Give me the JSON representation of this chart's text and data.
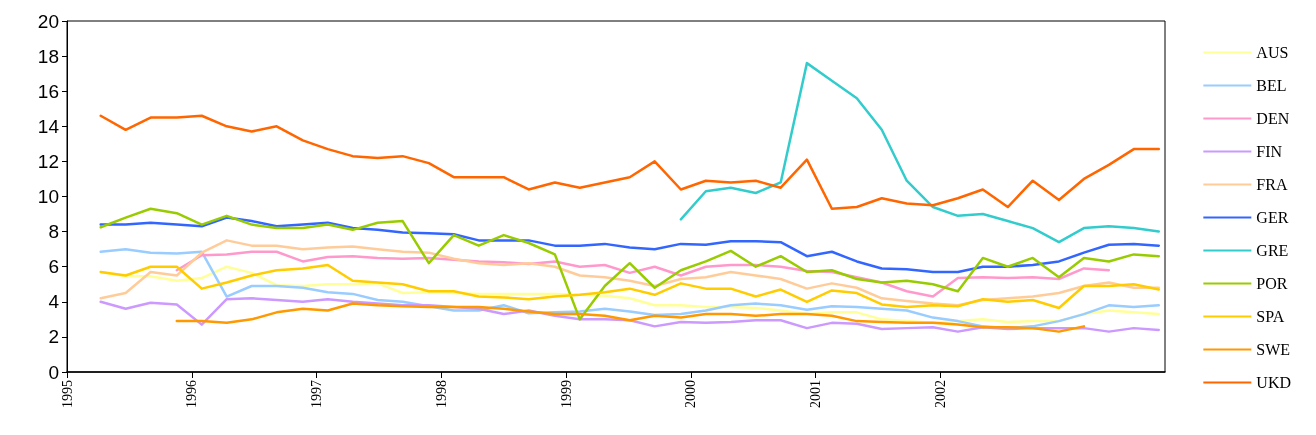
{
  "chart_data": {
    "type": "line",
    "x": [
      1995.27,
      1995.47,
      1995.67,
      1995.88,
      1996.08,
      1996.28,
      1996.48,
      1996.68,
      1996.89,
      1997.09,
      1997.29,
      1997.49,
      1997.69,
      1997.9,
      1998.1,
      1998.3,
      1998.5,
      1998.7,
      1998.91,
      1999.11,
      1999.31,
      1999.51,
      1999.71,
      1999.92,
      2000.12,
      2000.32,
      2000.52,
      2000.72,
      2000.93,
      2001.13,
      2001.33,
      2001.53,
      2001.73,
      2001.94,
      2002.14,
      2002.34,
      2002.54,
      2002.74,
      2002.95,
      2003.15,
      2003.35,
      2003.55,
      2003.75
    ],
    "xlim": [
      1995,
      2003.8
    ],
    "xticks": [
      1995,
      1996,
      1997,
      1998,
      1999,
      2000,
      2001,
      2002
    ],
    "ylim": [
      0,
      20
    ],
    "yticks": [
      0,
      2,
      4,
      6,
      8,
      10,
      12,
      14,
      16,
      18,
      20
    ],
    "grid": false,
    "legend": "right",
    "marker": "none",
    "line_style": "solid",
    "series": [
      {
        "name": "AUS",
        "color": "#ffff99",
        "values": [
          5.7,
          5.45,
          5.45,
          5.2,
          5.35,
          6.0,
          5.65,
          4.95,
          4.9,
          5.0,
          5.0,
          5.05,
          4.5,
          4.55,
          4.5,
          4.45,
          4.45,
          4.45,
          4.45,
          4.4,
          4.35,
          4.2,
          3.8,
          3.8,
          3.7,
          3.7,
          3.65,
          3.5,
          3.3,
          3.4,
          3.4,
          3.0,
          2.9,
          2.8,
          2.9,
          3.0,
          2.85,
          2.9,
          2.9,
          3.3,
          3.5,
          3.4,
          3.3
        ]
      },
      {
        "name": "BEL",
        "color": "#99ccff",
        "values": [
          6.85,
          7.0,
          6.8,
          6.75,
          6.85,
          4.3,
          4.9,
          4.9,
          4.8,
          4.55,
          4.45,
          4.1,
          4.0,
          3.75,
          3.5,
          3.5,
          3.8,
          3.35,
          3.4,
          3.45,
          3.6,
          3.45,
          3.25,
          3.3,
          3.5,
          3.8,
          3.9,
          3.8,
          3.55,
          3.75,
          3.7,
          3.6,
          3.5,
          3.1,
          2.9,
          2.6,
          2.5,
          2.6,
          2.9,
          3.3,
          3.8,
          3.7,
          3.8
        ]
      },
      {
        "name": "DEN",
        "color": "#ff99cc",
        "values": [
          null,
          null,
          null,
          5.8,
          6.65,
          6.7,
          6.85,
          6.85,
          6.3,
          6.55,
          6.6,
          6.5,
          6.45,
          6.5,
          6.4,
          6.3,
          6.25,
          6.15,
          6.3,
          6.0,
          6.1,
          5.65,
          6.0,
          5.5,
          6.0,
          6.1,
          6.1,
          6.0,
          5.75,
          5.7,
          5.4,
          5.1,
          4.6,
          4.3,
          5.35,
          5.4,
          5.35,
          5.4,
          5.3,
          5.9,
          5.8,
          null,
          null
        ]
      },
      {
        "name": "FIN",
        "color": "#cc99ff",
        "values": [
          4.0,
          3.6,
          3.95,
          3.85,
          2.7,
          4.15,
          4.2,
          4.1,
          4.0,
          4.15,
          4.0,
          3.9,
          3.8,
          3.8,
          3.7,
          3.6,
          3.3,
          3.5,
          3.2,
          3.0,
          3.0,
          2.95,
          2.6,
          2.85,
          2.8,
          2.85,
          2.95,
          2.95,
          2.5,
          2.8,
          2.75,
          2.45,
          2.5,
          2.55,
          2.3,
          2.55,
          2.45,
          2.5,
          2.5,
          2.5,
          2.3,
          2.5,
          2.4
        ]
      },
      {
        "name": "FRA",
        "color": "#ffcc99",
        "values": [
          4.2,
          4.5,
          5.7,
          5.5,
          6.8,
          7.5,
          7.2,
          7.2,
          7.0,
          7.1,
          7.15,
          7.0,
          6.85,
          6.8,
          6.45,
          6.2,
          6.1,
          6.2,
          6.0,
          5.5,
          5.4,
          5.2,
          4.9,
          5.3,
          5.4,
          5.7,
          5.5,
          5.3,
          4.75,
          5.05,
          4.8,
          4.2,
          4.05,
          3.9,
          3.8,
          4.1,
          4.2,
          4.3,
          4.5,
          4.9,
          5.1,
          4.8,
          4.8
        ]
      },
      {
        "name": "GER",
        "color": "#3366ff",
        "values": [
          8.4,
          8.4,
          8.5,
          8.4,
          8.3,
          8.8,
          8.6,
          8.3,
          8.4,
          8.5,
          8.2,
          8.1,
          7.95,
          7.9,
          7.85,
          7.5,
          7.5,
          7.5,
          7.2,
          7.2,
          7.3,
          7.1,
          7.0,
          7.3,
          7.25,
          7.45,
          7.45,
          7.4,
          6.6,
          6.85,
          6.3,
          5.9,
          5.85,
          5.7,
          5.7,
          6.0,
          6.0,
          6.1,
          6.3,
          6.8,
          7.25,
          7.3,
          7.2
        ]
      },
      {
        "name": "GRE",
        "color": "#33cccc",
        "values": [
          null,
          null,
          null,
          null,
          null,
          null,
          null,
          null,
          null,
          null,
          null,
          null,
          null,
          null,
          null,
          null,
          null,
          null,
          null,
          null,
          null,
          null,
          null,
          8.7,
          10.3,
          10.5,
          10.2,
          10.8,
          17.6,
          16.6,
          15.6,
          13.8,
          10.9,
          9.4,
          8.9,
          9.0,
          8.6,
          8.2,
          7.4,
          8.2,
          8.3,
          8.2,
          8.0
        ]
      },
      {
        "name": "POR",
        "color": "#99cc00",
        "values": [
          8.25,
          8.8,
          9.3,
          9.05,
          8.4,
          8.9,
          8.4,
          8.2,
          8.2,
          8.4,
          8.1,
          8.5,
          8.6,
          6.2,
          7.8,
          7.2,
          7.8,
          7.35,
          6.7,
          3.0,
          4.9,
          6.2,
          4.8,
          5.8,
          6.3,
          6.9,
          6.0,
          6.6,
          5.7,
          5.8,
          5.3,
          5.1,
          5.2,
          5.0,
          4.6,
          6.5,
          6.0,
          6.5,
          5.4,
          6.5,
          6.3,
          6.7,
          6.6
        ]
      },
      {
        "name": "SPA",
        "color": "#ffcc00",
        "values": [
          5.7,
          5.5,
          6.0,
          6.0,
          4.75,
          5.1,
          5.5,
          5.8,
          5.9,
          6.1,
          5.2,
          5.1,
          5.0,
          4.6,
          4.6,
          4.3,
          4.25,
          4.15,
          4.3,
          4.4,
          4.55,
          4.75,
          4.4,
          5.05,
          4.75,
          4.75,
          4.3,
          4.7,
          4.0,
          4.65,
          4.5,
          3.85,
          3.7,
          3.8,
          3.75,
          4.15,
          4.0,
          4.1,
          3.65,
          4.9,
          4.9,
          5.0,
          4.7
        ]
      },
      {
        "name": "SWE",
        "color": "#ff9900",
        "values": [
          null,
          null,
          null,
          2.9,
          2.9,
          2.8,
          3.0,
          3.4,
          3.6,
          3.5,
          3.9,
          3.8,
          3.75,
          3.7,
          3.7,
          3.7,
          3.6,
          3.45,
          3.3,
          3.3,
          3.2,
          2.95,
          3.2,
          3.1,
          3.3,
          3.3,
          3.2,
          3.3,
          3.3,
          3.2,
          2.9,
          2.85,
          2.8,
          2.8,
          2.7,
          2.55,
          2.55,
          2.5,
          2.3,
          2.6,
          null,
          null,
          null
        ]
      },
      {
        "name": "UKD",
        "color": "#ff6600",
        "values": [
          14.6,
          13.8,
          14.5,
          14.5,
          14.6,
          14.0,
          13.7,
          14.0,
          13.2,
          12.7,
          12.3,
          12.2,
          12.3,
          11.9,
          11.1,
          11.1,
          11.1,
          10.4,
          10.8,
          10.5,
          10.8,
          11.1,
          12.0,
          10.4,
          10.9,
          10.8,
          10.9,
          10.5,
          12.1,
          9.3,
          9.4,
          9.9,
          9.6,
          9.5,
          9.9,
          10.4,
          9.4,
          10.9,
          9.8,
          11.0,
          11.8,
          12.7,
          12.7
        ]
      }
    ]
  }
}
